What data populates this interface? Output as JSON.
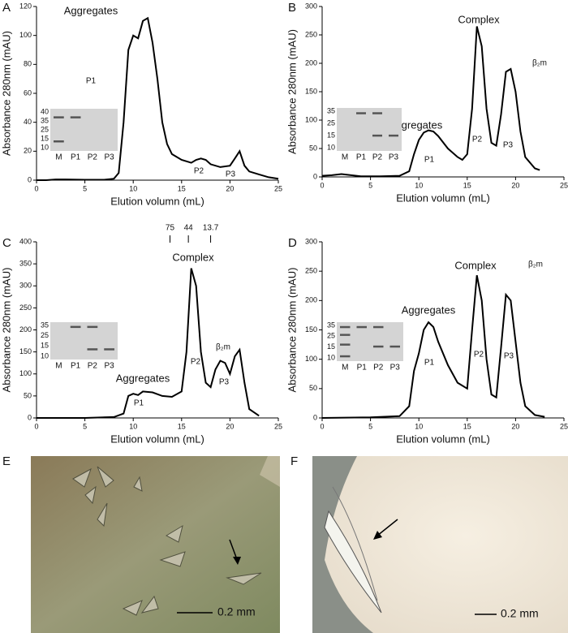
{
  "chart_data": [
    {
      "type": "line",
      "panel": "A",
      "xlabel": "Elution volumn (mL)",
      "ylabel": "Absorbance 280nm (mAU)",
      "x": [
        0,
        1,
        2,
        3,
        5,
        7,
        8,
        8.5,
        9,
        9.5,
        10,
        10.5,
        11,
        11.5,
        12,
        12.5,
        13,
        13.5,
        14,
        15,
        16,
        16.5,
        17,
        17.5,
        18,
        19,
        20,
        20.5,
        21,
        21.5,
        22,
        23,
        24,
        25
      ],
      "values": [
        0,
        0,
        0.5,
        0.5,
        0.3,
        0.3,
        1,
        5,
        40,
        90,
        100,
        98,
        110,
        112,
        95,
        70,
        40,
        25,
        18,
        14,
        12,
        14,
        15,
        14,
        11,
        9,
        10,
        15,
        20,
        10,
        6,
        4,
        2,
        1
      ],
      "color": "#000000",
      "xlim": [
        0,
        25
      ],
      "xticks": [
        0,
        5,
        10,
        15,
        20,
        25
      ],
      "ylim": [
        0,
        120
      ],
      "yticks": [
        0,
        20,
        40,
        60,
        80,
        100,
        120
      ],
      "annotations": [
        "Aggregates",
        "P1",
        "P2",
        "P3"
      ],
      "inset": {
        "ladder": [
          "40",
          "35",
          "25",
          "15",
          "10"
        ],
        "lanes": [
          "M",
          "P1",
          "P2",
          "P3"
        ]
      }
    },
    {
      "type": "line",
      "panel": "B",
      "xlabel": "Elution volumn (mL)",
      "ylabel": "Absorbance 280nm (mAU)",
      "x": [
        0,
        1,
        2,
        3,
        4,
        6,
        8,
        9,
        9.5,
        10,
        10.5,
        11,
        11.5,
        12,
        13,
        14,
        14.5,
        15,
        15.5,
        16,
        16.5,
        17,
        17.5,
        18,
        18.5,
        19,
        19.5,
        20,
        20.5,
        21,
        22,
        22.5
      ],
      "values": [
        2,
        3,
        5,
        3,
        1,
        1,
        2,
        10,
        40,
        65,
        78,
        82,
        80,
        72,
        50,
        35,
        30,
        40,
        120,
        265,
        230,
        120,
        60,
        55,
        110,
        185,
        190,
        150,
        80,
        35,
        15,
        12
      ],
      "color": "#000000",
      "xlim": [
        0,
        25
      ],
      "xticks": [
        0,
        5,
        10,
        15,
        20,
        25
      ],
      "ylim": [
        0,
        300
      ],
      "yticks": [
        0,
        50,
        100,
        150,
        200,
        250,
        300
      ],
      "annotations": [
        "Complex",
        "Aggregates",
        "β₂m",
        "P1",
        "P2",
        "P3"
      ],
      "inset": {
        "ladder": [
          "35",
          "25",
          "15",
          "10"
        ],
        "lanes": [
          "M",
          "P1",
          "P2",
          "P3"
        ]
      }
    },
    {
      "type": "line",
      "panel": "C",
      "xlabel": "Elution volumn (mL)",
      "ylabel": "Absorbance 280nm (mAU)",
      "x": [
        0,
        5,
        8,
        9,
        9.5,
        10,
        10.5,
        11,
        12,
        13,
        14,
        15,
        15.5,
        16,
        16.5,
        17,
        17.5,
        18,
        18.5,
        19,
        19.5,
        20,
        20.5,
        21,
        21.5,
        22,
        23
      ],
      "values": [
        0,
        0,
        2,
        10,
        50,
        55,
        52,
        60,
        58,
        50,
        48,
        60,
        150,
        340,
        300,
        150,
        80,
        70,
        110,
        130,
        125,
        100,
        140,
        155,
        80,
        20,
        5
      ],
      "color": "#000000",
      "xlim": [
        0,
        25
      ],
      "xticks": [
        0,
        5,
        10,
        15,
        20,
        25
      ],
      "ylim": [
        0,
        400
      ],
      "yticks": [
        0,
        50,
        100,
        150,
        200,
        250,
        300,
        350,
        400
      ],
      "annotations": [
        "Complex",
        "Aggregates",
        "β₂m",
        "P1",
        "P2",
        "P3"
      ],
      "markers": [
        {
          "label": "75",
          "x": 13.8
        },
        {
          "label": "44",
          "x": 15.7
        },
        {
          "label": "13.7",
          "x": 18
        }
      ],
      "inset": {
        "ladder": [
          "35",
          "25",
          "15",
          "10"
        ],
        "lanes": [
          "M",
          "P1",
          "P2",
          "P3"
        ]
      }
    },
    {
      "type": "line",
      "panel": "D",
      "xlabel": "Elution volumn (mL)",
      "ylabel": "Absorbance 280nm (mAU)",
      "x": [
        0,
        5,
        8,
        9,
        9.5,
        10,
        10.5,
        11,
        11.5,
        12,
        13,
        14,
        15,
        15.5,
        16,
        16.5,
        17,
        17.5,
        18,
        18.5,
        19,
        19.5,
        20,
        20.5,
        21,
        22,
        23
      ],
      "values": [
        0,
        1,
        3,
        20,
        80,
        110,
        150,
        163,
        155,
        130,
        90,
        60,
        50,
        150,
        243,
        200,
        100,
        40,
        35,
        120,
        210,
        200,
        130,
        60,
        20,
        5,
        2
      ],
      "color": "#000000",
      "xlim": [
        0,
        25
      ],
      "xticks": [
        0,
        5,
        10,
        15,
        20,
        25
      ],
      "ylim": [
        0,
        300
      ],
      "yticks": [
        0,
        50,
        100,
        150,
        200,
        250,
        300
      ],
      "annotations": [
        "Complex",
        "Aggregates",
        "β₂m",
        "P1",
        "P2",
        "P3"
      ],
      "inset": {
        "ladder": [
          "35",
          "25",
          "15",
          "10"
        ],
        "lanes": [
          "M",
          "P1",
          "P2",
          "P3"
        ]
      }
    }
  ],
  "images": [
    {
      "panel": "E",
      "scale_bar": "0.2 mm"
    },
    {
      "panel": "F",
      "scale_bar": "0.2 mm"
    }
  ]
}
